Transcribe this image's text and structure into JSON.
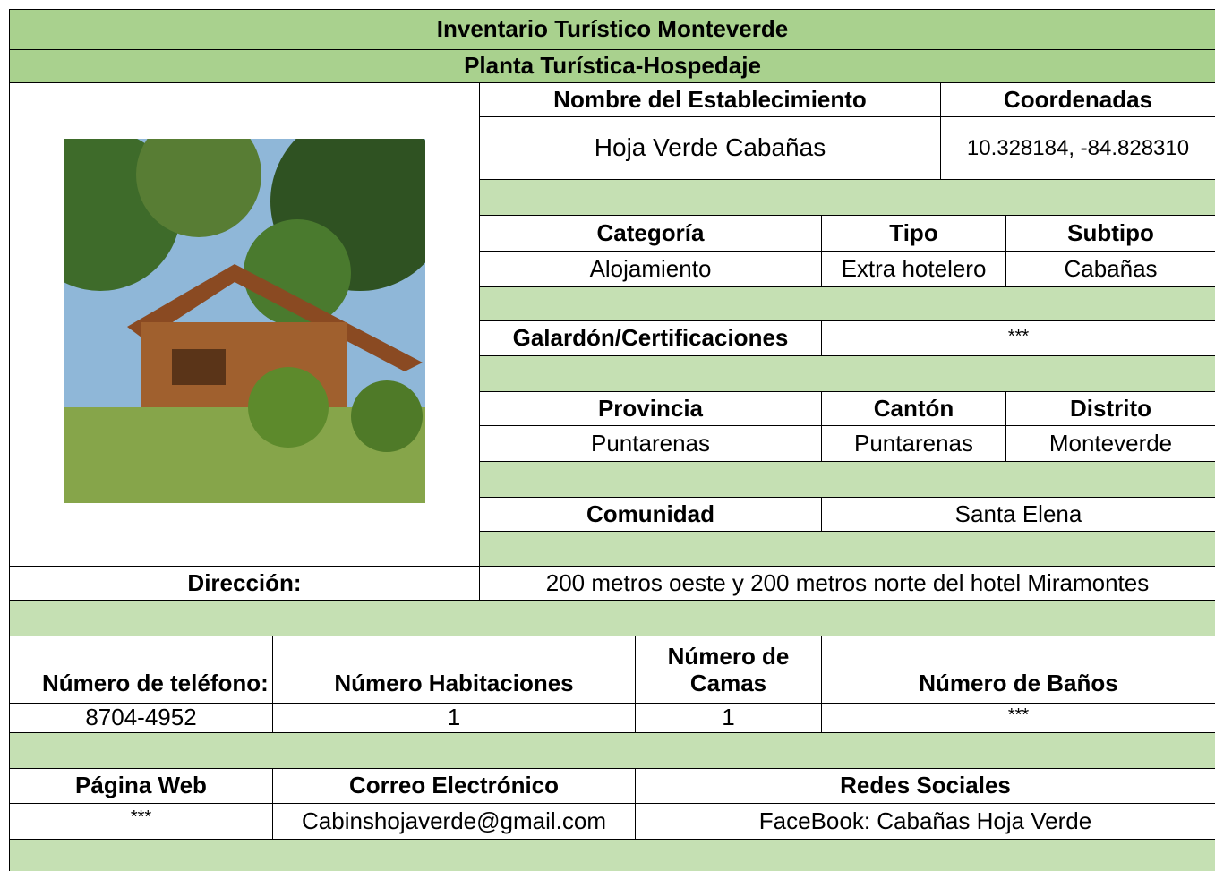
{
  "header": {
    "title": "Inventario Turístico Monteverde",
    "subtitle": "Planta Turística-Hospedaje"
  },
  "establishment": {
    "name_label": "Nombre del Establecimiento",
    "name": "Hoja Verde Cabañas",
    "coordinates_label": "Coordenadas",
    "coordinates": "10.328184, -84.828310"
  },
  "classification": {
    "labels": [
      "Categoría",
      "Tipo",
      "Subtipo"
    ],
    "values": [
      "Alojamiento",
      "Extra hotelero",
      "Cabañas"
    ]
  },
  "award": {
    "label": "Galardón/Certificaciones",
    "value": "***"
  },
  "location": {
    "labels": [
      "Provincia",
      "Cantón",
      "Distrito"
    ],
    "values": [
      "Puntarenas",
      "Puntarenas",
      "Monteverde"
    ]
  },
  "community": {
    "label": "Comunidad",
    "value": "Santa Elena"
  },
  "address": {
    "label": "Dirección:",
    "value": "200 metros oeste y 200 metros norte del hotel Miramontes"
  },
  "capacity": {
    "labels": [
      "Número de teléfono:",
      "Número Habitaciones",
      "Número de Camas",
      "Número de Baños"
    ],
    "values": [
      "8704-4952",
      "1",
      "1",
      "***"
    ]
  },
  "contact": {
    "labels": [
      "Página Web",
      "Correo Electrónico",
      "Redes Sociales"
    ],
    "values": [
      "***",
      "Cabinshojaverde@gmail.com",
      "FaceBook: Cabañas Hoja Verde"
    ]
  }
}
